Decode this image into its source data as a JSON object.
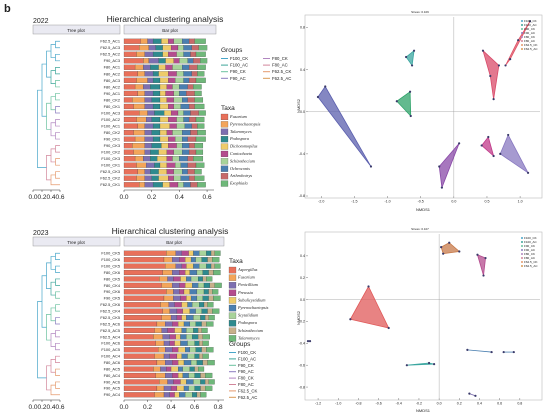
{
  "figure_label": "b",
  "chart_data": [
    {
      "type": "bar",
      "year": "2022",
      "title": "Hierarchical clustering analysis",
      "tree_header": "Tree plot",
      "bar_header": "Bar plot",
      "xticks": [
        "0.0",
        "0.2",
        "0.4",
        "0.6"
      ],
      "bar_xticks": [
        "0.0",
        "0.2",
        "0.4",
        "0.6"
      ],
      "xlim": [
        0,
        0.65
      ],
      "samples": [
        "F62.5_AC1",
        "F62.5_AC3",
        "F62.5_AC2",
        "F90_AC3",
        "F80_AC1",
        "F80_AC2",
        "F80_AC3",
        "F80_AC2",
        "F90_AC1",
        "F80_CK2",
        "F80_CK1",
        "F100_AC3",
        "F100_AC2",
        "F100_AC1",
        "F80_CK2",
        "F90_CK1",
        "F90_CK3",
        "F100_CK2",
        "F100_CK3",
        "F100_CK1",
        "F62.5_CK3",
        "F62.5_CK2",
        "F62.5_CK1"
      ],
      "groups_title": "Groups",
      "groups": [
        "F100_CK",
        "F100_AC",
        "F90_CK",
        "F90_AC",
        "F80_CK",
        "F80_AC",
        "F62.5_CK",
        "F62.5_AC"
      ],
      "taxa_title": "Taxa",
      "taxa": [
        "Fusarium",
        "Pyrenochaetopsis",
        "Talaromyces",
        "Podospora",
        "Dichotomopilus",
        "Coniochaeta",
        "Schizothecium",
        "Ochroconis",
        "Arthrobotrys",
        "Exophiala"
      ],
      "taxa_colors": [
        "#e8705a",
        "#f3a55a",
        "#7d6fb0",
        "#2e8a8e",
        "#eecb6a",
        "#b44c8e",
        "#a8d39a",
        "#4a7fb0",
        "#c76a6a",
        "#6fb87a"
      ],
      "group_colors": [
        "#49a6c9",
        "#3da59a",
        "#6ac19f",
        "#8a7cc0",
        "#b186c0",
        "#d2869b",
        "#e59a6d",
        "#d99a55"
      ],
      "series_values": [
        [
          0.12,
          0.11,
          0.09,
          0.14,
          0.08,
          0.1,
          0.09,
          0.08,
          0.1,
          0.06,
          0.07,
          0.11,
          0.09,
          0.1,
          0.07,
          0.08,
          0.06,
          0.07,
          0.08,
          0.09,
          0.1,
          0.09,
          0.11
        ],
        [
          0.05,
          0.07,
          0.06,
          0.04,
          0.06,
          0.05,
          0.08,
          0.06,
          0.05,
          0.09,
          0.08,
          0.06,
          0.07,
          0.05,
          0.08,
          0.07,
          0.09,
          0.08,
          0.06,
          0.07,
          0.05,
          0.06,
          0.04
        ],
        [
          0.04,
          0.05,
          0.06,
          0.07,
          0.05,
          0.06,
          0.04,
          0.05,
          0.06,
          0.05,
          0.06,
          0.05,
          0.04,
          0.06,
          0.05,
          0.06,
          0.05,
          0.04,
          0.05,
          0.06,
          0.04,
          0.05,
          0.06
        ],
        [
          0.06,
          0.05,
          0.07,
          0.05,
          0.06,
          0.04,
          0.05,
          0.07,
          0.05,
          0.06,
          0.05,
          0.07,
          0.06,
          0.05,
          0.06,
          0.05,
          0.07,
          0.06,
          0.05,
          0.04,
          0.06,
          0.05,
          0.07
        ],
        [
          0.05,
          0.06,
          0.04,
          0.06,
          0.05,
          0.07,
          0.06,
          0.05,
          0.04,
          0.05,
          0.06,
          0.05,
          0.06,
          0.07,
          0.05,
          0.06,
          0.05,
          0.06,
          0.07,
          0.05,
          0.06,
          0.07,
          0.05
        ],
        [
          0.04,
          0.05,
          0.06,
          0.04,
          0.05,
          0.06,
          0.05,
          0.04,
          0.06,
          0.05,
          0.04,
          0.05,
          0.06,
          0.05,
          0.04,
          0.05,
          0.06,
          0.05,
          0.04,
          0.06,
          0.05,
          0.04,
          0.06
        ],
        [
          0.06,
          0.04,
          0.05,
          0.06,
          0.07,
          0.05,
          0.06,
          0.05,
          0.04,
          0.06,
          0.05,
          0.04,
          0.05,
          0.06,
          0.07,
          0.05,
          0.04,
          0.06,
          0.05,
          0.04,
          0.06,
          0.05,
          0.04
        ],
        [
          0.05,
          0.06,
          0.05,
          0.04,
          0.05,
          0.06,
          0.04,
          0.06,
          0.05,
          0.04,
          0.06,
          0.05,
          0.04,
          0.05,
          0.06,
          0.04,
          0.05,
          0.05,
          0.06,
          0.05,
          0.04,
          0.06,
          0.05
        ],
        [
          0.04,
          0.05,
          0.04,
          0.05,
          0.06,
          0.04,
          0.05,
          0.04,
          0.06,
          0.05,
          0.04,
          0.06,
          0.05,
          0.04,
          0.05,
          0.06,
          0.04,
          0.05,
          0.04,
          0.06,
          0.05,
          0.04,
          0.05
        ],
        [
          0.08,
          0.06,
          0.07,
          0.05,
          0.06,
          0.05,
          0.07,
          0.06,
          0.05,
          0.06,
          0.07,
          0.05,
          0.06,
          0.05,
          0.06,
          0.07,
          0.06,
          0.05,
          0.07,
          0.06,
          0.05,
          0.07,
          0.06
        ]
      ]
    },
    {
      "type": "bar",
      "year": "2023",
      "title": "Hierarchical clustering analysis",
      "tree_header": "Tree plot",
      "bar_header": "Bar plot",
      "xticks": [
        "0.0",
        "0.2",
        "0.4",
        "0.6"
      ],
      "bar_xticks": [
        "0.0",
        "0.2",
        "0.4",
        "0.6",
        "0.8"
      ],
      "xlim": [
        0,
        0.85
      ],
      "samples": [
        "F100_CK5",
        "F100_CK6",
        "F100_CK5",
        "F80_CK6",
        "F80_CK5",
        "F80_CK4",
        "F90_CK6",
        "F90_CK5",
        "F62.5_CK6",
        "F62.5_CK4",
        "F62.5_CK5",
        "F62.5_AC6",
        "F62.5_AC5",
        "F62.5_AC4",
        "F100_AC6",
        "F100_AC5",
        "F100_AC4",
        "F80_AC6",
        "F80_AC5",
        "F80_AC4",
        "F90_AC6",
        "F90_AC5",
        "F90_AC4"
      ],
      "taxa_title": "Taxa",
      "taxa": [
        "Aspergillus",
        "Fusarium",
        "Penicillium",
        "Preussia",
        "Subulicystidium",
        "Pyrenochaetopsis",
        "Scytalidium",
        "Podospora",
        "Schizothecium",
        "Talaromyces"
      ],
      "taxa_colors": [
        "#e8705a",
        "#f3a55a",
        "#7d6fb0",
        "#b44c8e",
        "#eecb6a",
        "#4a7fb0",
        "#a8d39a",
        "#2e8a8e",
        "#c7b08a",
        "#6fb87a"
      ],
      "groups_title": "Groups",
      "groups": [
        "F100_CK",
        "F100_AC",
        "F90_CK",
        "F90_AC",
        "F80_CK",
        "F80_AC",
        "F62.5_CK",
        "F62.5_AC"
      ],
      "group_colors": [
        "#49a6c9",
        "#3da59a",
        "#6ac19f",
        "#8a7cc0",
        "#b186c0",
        "#d2869b",
        "#e59a6d",
        "#d99a55"
      ],
      "series_values": [
        [
          0.36,
          0.34,
          0.35,
          0.33,
          0.3,
          0.32,
          0.36,
          0.34,
          0.31,
          0.33,
          0.32,
          0.28,
          0.26,
          0.25,
          0.27,
          0.29,
          0.26,
          0.28,
          0.25,
          0.27,
          0.3,
          0.28,
          0.26
        ],
        [
          0.08,
          0.07,
          0.09,
          0.08,
          0.07,
          0.09,
          0.06,
          0.08,
          0.07,
          0.06,
          0.08,
          0.07,
          0.06,
          0.08,
          0.07,
          0.06,
          0.08,
          0.07,
          0.06,
          0.08,
          0.07,
          0.06,
          0.08
        ],
        [
          0.05,
          0.06,
          0.05,
          0.06,
          0.05,
          0.06,
          0.05,
          0.06,
          0.05,
          0.06,
          0.05,
          0.06,
          0.05,
          0.06,
          0.05,
          0.06,
          0.05,
          0.06,
          0.05,
          0.06,
          0.05,
          0.06,
          0.05
        ],
        [
          0.06,
          0.05,
          0.04,
          0.05,
          0.06,
          0.05,
          0.04,
          0.05,
          0.06,
          0.05,
          0.04,
          0.05,
          0.06,
          0.05,
          0.04,
          0.05,
          0.06,
          0.05,
          0.04,
          0.05,
          0.06,
          0.05,
          0.04
        ],
        [
          0.04,
          0.05,
          0.06,
          0.04,
          0.05,
          0.06,
          0.05,
          0.04,
          0.05,
          0.06,
          0.04,
          0.05,
          0.06,
          0.04,
          0.05,
          0.06,
          0.04,
          0.05,
          0.06,
          0.04,
          0.05,
          0.06,
          0.04
        ],
        [
          0.05,
          0.04,
          0.05,
          0.06,
          0.04,
          0.05,
          0.06,
          0.05,
          0.04,
          0.05,
          0.06,
          0.05,
          0.04,
          0.05,
          0.06,
          0.04,
          0.05,
          0.06,
          0.04,
          0.05,
          0.06,
          0.04,
          0.05
        ],
        [
          0.06,
          0.05,
          0.06,
          0.05,
          0.06,
          0.05,
          0.06,
          0.05,
          0.06,
          0.05,
          0.06,
          0.05,
          0.06,
          0.05,
          0.06,
          0.05,
          0.06,
          0.05,
          0.06,
          0.05,
          0.06,
          0.05,
          0.06
        ],
        [
          0.04,
          0.05,
          0.04,
          0.05,
          0.04,
          0.05,
          0.04,
          0.05,
          0.04,
          0.05,
          0.04,
          0.05,
          0.04,
          0.05,
          0.04,
          0.05,
          0.04,
          0.05,
          0.04,
          0.05,
          0.04,
          0.05,
          0.04
        ],
        [
          0.03,
          0.04,
          0.03,
          0.04,
          0.03,
          0.04,
          0.03,
          0.04,
          0.03,
          0.04,
          0.03,
          0.04,
          0.03,
          0.04,
          0.03,
          0.04,
          0.03,
          0.04,
          0.03,
          0.04,
          0.03,
          0.04,
          0.03
        ],
        [
          0.05,
          0.06,
          0.05,
          0.06,
          0.05,
          0.06,
          0.05,
          0.06,
          0.05,
          0.06,
          0.05,
          0.06,
          0.05,
          0.06,
          0.05,
          0.06,
          0.05,
          0.06,
          0.05,
          0.06,
          0.05,
          0.06,
          0.05
        ]
      ]
    },
    {
      "type": "scatter",
      "year": "2022",
      "title": "Stress: 0.109",
      "xlabel": "NMDS1",
      "ylabel": "NMDS2",
      "xlim": [
        -2.2,
        1.3
      ],
      "ylim": [
        -0.8,
        0.9
      ],
      "xticks": [
        "-2.0",
        "-1.5",
        "-1.0",
        "-0.5",
        "0.0",
        "0.5",
        "1.0"
      ],
      "yticks": [
        "-0.8",
        "-0.4",
        "0.0",
        "0.4",
        "0.8"
      ],
      "legend": [
        "F100_CK",
        "F100_AC",
        "F90_CK",
        "F90_AC",
        "F80_CK",
        "F80_AC",
        "F62.5_CK",
        "F62.5_AC"
      ],
      "legend_placement": "top-right",
      "polygons": [
        {
          "group": "F100_CK",
          "color": "#3aa6a0",
          "points": [
            [
              -0.72,
              0.52
            ],
            [
              -0.6,
              0.58
            ],
            [
              -0.63,
              0.44
            ]
          ]
        },
        {
          "group": "F90_CK",
          "color": "#2fa36a",
          "points": [
            [
              -0.86,
              0.1
            ],
            [
              -0.66,
              0.19
            ],
            [
              -0.65,
              -0.04
            ]
          ]
        },
        {
          "group": "F100_AC",
          "color": "#5b5fae",
          "points": [
            [
              -2.05,
              0.14
            ],
            [
              -1.94,
              0.24
            ],
            [
              -1.25,
              -0.52
            ]
          ]
        },
        {
          "group": "F80_AC",
          "color": "#d94b6a",
          "points": [
            [
              0.44,
              0.58
            ],
            [
              0.55,
              0.34
            ],
            [
              0.6,
              0.12
            ],
            [
              0.68,
              0.44
            ]
          ]
        },
        {
          "group": "F62.5_AC",
          "color": "#e05568",
          "points": [
            [
              0.78,
              0.44
            ],
            [
              0.97,
              0.68
            ],
            [
              1.15,
              0.86
            ],
            [
              0.85,
              0.5
            ]
          ]
        },
        {
          "group": "F90_AC",
          "color": "#c03a8a",
          "points": [
            [
              0.42,
              -0.32
            ],
            [
              0.52,
              -0.24
            ],
            [
              0.6,
              -0.42
            ]
          ]
        },
        {
          "group": "F80_CK",
          "color": "#8878c0",
          "points": [
            [
              0.7,
              -0.4
            ],
            [
              0.82,
              -0.22
            ],
            [
              1.12,
              -0.58
            ]
          ]
        },
        {
          "group": "F62.5_CK",
          "color": "#8a4aa8",
          "points": [
            [
              -0.22,
              -0.52
            ],
            [
              0.08,
              -0.3
            ],
            [
              -0.18,
              -0.72
            ]
          ]
        }
      ]
    },
    {
      "type": "scatter",
      "year": "2023",
      "title": "Stress: 0.107",
      "xlabel": "NMDS1",
      "ylabel": "NMDS2",
      "xlim": [
        -1.3,
        1.0
      ],
      "ylim": [
        -0.9,
        0.6
      ],
      "xticks": [
        "-1.2",
        "-1.0",
        "-0.8",
        "-0.6",
        "-0.4",
        "-0.2",
        "0.0",
        "0.2",
        "0.4",
        "0.6",
        "0.8"
      ],
      "yticks": [
        "-0.8",
        "-0.6",
        "-0.4",
        "-0.2",
        "0.0",
        "0.2",
        "0.4"
      ],
      "legend": [
        "F100_CK",
        "F100_AC",
        "F90_CK",
        "F90_AC",
        "F80_CK",
        "F80_AC",
        "F62.5_CK",
        "F62.5_AC"
      ],
      "legend_placement": "top-right",
      "polygons": [
        {
          "group": "F62.5_CK",
          "color": "#e05a5a",
          "points": [
            [
              -0.7,
              0.12
            ],
            [
              -0.88,
              -0.18
            ],
            [
              -0.5,
              -0.26
            ]
          ]
        },
        {
          "group": "F100_CK",
          "color": "#c77a4a",
          "points": [
            [
              0.02,
              0.48
            ],
            [
              0.1,
              0.52
            ],
            [
              0.2,
              0.44
            ],
            [
              0.04,
              0.42
            ]
          ]
        },
        {
          "group": "F80_AC",
          "color": "#b44c8e",
          "points": [
            [
              0.38,
              0.41
            ],
            [
              0.46,
              0.38
            ],
            [
              0.44,
              0.22
            ]
          ]
        },
        {
          "group": "F100_AC",
          "color": "#555",
          "points": [
            [
              -1.3,
              -0.38
            ],
            [
              -1.28,
              -0.38
            ]
          ]
        },
        {
          "group": "F90_CK",
          "color": "#3aa6a0",
          "points": [
            [
              -0.32,
              -0.6
            ],
            [
              -0.1,
              -0.58
            ],
            [
              -0.05,
              -0.59
            ]
          ]
        },
        {
          "group": "F80_CK",
          "color": "#4a7fb0",
          "points": [
            [
              0.28,
              -0.46
            ],
            [
              0.52,
              -0.48
            ]
          ]
        },
        {
          "group": "F90_AC",
          "color": "#4a7fb0",
          "points": [
            [
              0.64,
              -0.48
            ],
            [
              0.74,
              -0.48
            ]
          ]
        },
        {
          "group": "F62.5_AC",
          "color": "#7d6fb0",
          "points": [
            [
              0.3,
              -0.86
            ],
            [
              0.36,
              -0.88
            ]
          ]
        }
      ]
    }
  ]
}
